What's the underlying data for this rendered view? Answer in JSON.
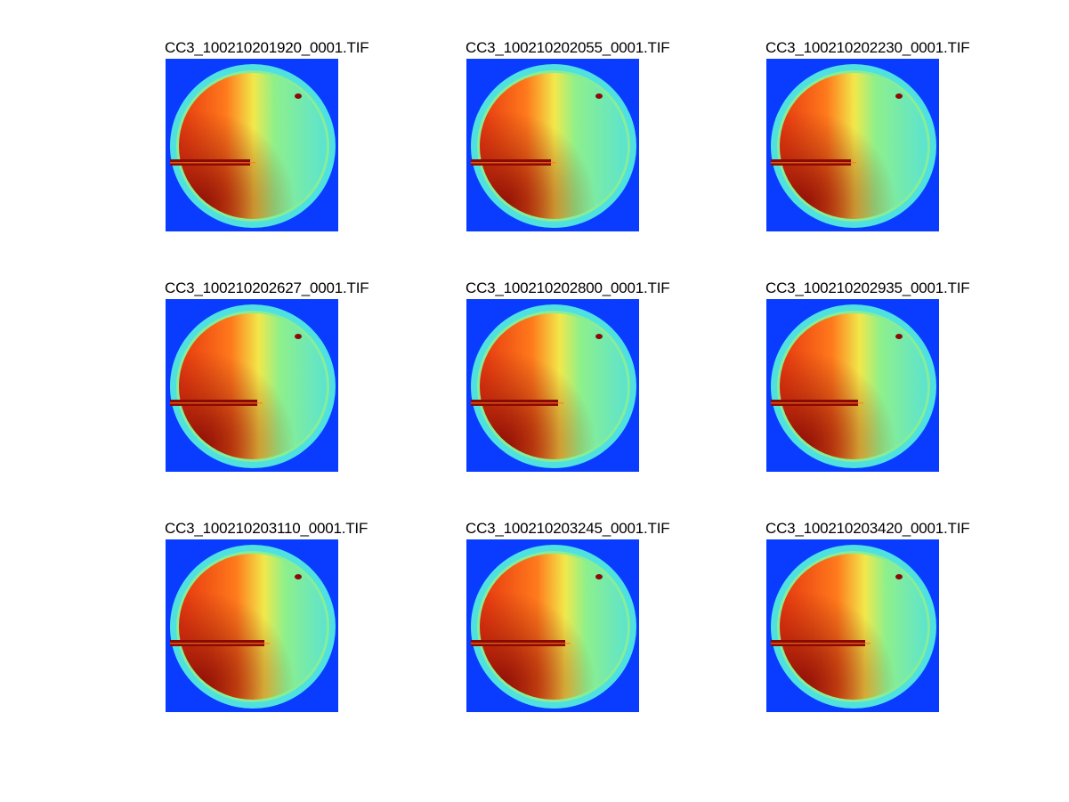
{
  "figure": {
    "panels": [
      {
        "title": "CC3_100210201920_0001.TIF"
      },
      {
        "title": "CC3_100210202055_0001.TIF"
      },
      {
        "title": "CC3_100210202230_0001.TIF"
      },
      {
        "title": "CC3_100210202627_0001.TIF"
      },
      {
        "title": "CC3_100210202800_0001.TIF"
      },
      {
        "title": "CC3_100210202935_0001.TIF"
      },
      {
        "title": "CC3_100210203110_0001.TIF"
      },
      {
        "title": "CC3_100210203245_0001.TIF"
      },
      {
        "title": "CC3_100210203420_0001.TIF"
      }
    ],
    "colors": {
      "background_blue": "#0a3cff",
      "rim_cyan": "#4fe0e0",
      "mid_green": "#8ff08a",
      "yellow": "#f2e84a",
      "orange": "#ff7a1c",
      "red": "#e0260c",
      "dark_red": "#8a0a05"
    }
  }
}
